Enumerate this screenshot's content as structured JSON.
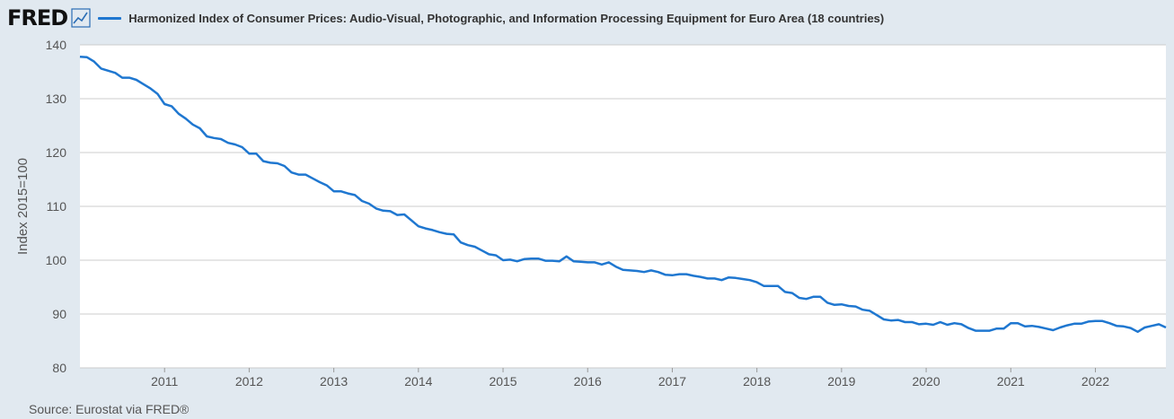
{
  "header": {
    "logo": "FRED",
    "logo_icon": "line-chart-icon",
    "legend": "Harmonized Index of Consumer Prices: Audio-Visual, Photographic, and Information Processing Equipment for Euro Area (18 countries)"
  },
  "colors": {
    "series": "#1f77d0",
    "background": "#e1e9f0",
    "plot": "#ffffff",
    "grid": "#cccccc"
  },
  "source": "Source: Eurostat via FRED®",
  "chart_data": {
    "type": "line",
    "title": "",
    "xlabel": "",
    "ylabel": "Index 2015=100",
    "ylim": [
      80,
      140
    ],
    "xlim": [
      "2010-01",
      "2022-11"
    ],
    "yticks": [
      80,
      90,
      100,
      110,
      120,
      130,
      140
    ],
    "xticks": [
      "2011",
      "2012",
      "2013",
      "2014",
      "2015",
      "2016",
      "2017",
      "2018",
      "2019",
      "2020",
      "2021",
      "2022"
    ],
    "grid": true,
    "series": [
      {
        "name": "Harmonized Index of Consumer Prices: Audio-Visual, Photographic, and Information Processing Equipment for Euro Area (18 countries)",
        "frequency": "monthly",
        "start": "2010-01",
        "values": [
          137.8,
          137.7,
          136.9,
          135.6,
          135.2,
          134.8,
          133.9,
          133.9,
          133.5,
          132.7,
          131.9,
          130.9,
          129.0,
          128.6,
          127.2,
          126.3,
          125.2,
          124.5,
          123.0,
          122.7,
          122.5,
          121.8,
          121.5,
          121.0,
          119.8,
          119.8,
          118.4,
          118.1,
          118.0,
          117.5,
          116.3,
          115.9,
          115.9,
          115.2,
          114.5,
          113.9,
          112.8,
          112.8,
          112.4,
          112.1,
          111.0,
          110.5,
          109.6,
          109.2,
          109.1,
          108.4,
          108.5,
          107.4,
          106.3,
          105.9,
          105.6,
          105.2,
          104.9,
          104.8,
          103.3,
          102.8,
          102.5,
          101.8,
          101.1,
          100.9,
          100.0,
          100.1,
          99.8,
          100.2,
          100.3,
          100.3,
          99.9,
          99.9,
          99.8,
          100.7,
          99.8,
          99.7,
          99.6,
          99.6,
          99.2,
          99.6,
          98.8,
          98.2,
          98.1,
          98.0,
          97.8,
          98.1,
          97.8,
          97.3,
          97.2,
          97.4,
          97.4,
          97.1,
          96.9,
          96.6,
          96.6,
          96.3,
          96.8,
          96.7,
          96.5,
          96.3,
          95.9,
          95.2,
          95.2,
          95.2,
          94.1,
          93.9,
          93.0,
          92.8,
          93.2,
          93.2,
          92.1,
          91.7,
          91.8,
          91.5,
          91.4,
          90.8,
          90.6,
          89.8,
          89.0,
          88.8,
          88.9,
          88.5,
          88.5,
          88.1,
          88.2,
          88.0,
          88.5,
          88.0,
          88.3,
          88.1,
          87.4,
          86.9,
          86.9,
          86.9,
          87.3,
          87.3,
          88.3,
          88.3,
          87.7,
          87.8,
          87.6,
          87.3,
          87.0,
          87.5,
          87.9,
          88.2,
          88.2,
          88.6,
          88.7,
          88.7,
          88.3,
          87.8,
          87.7,
          87.4,
          86.7,
          87.5,
          87.8,
          88.1,
          87.5
        ]
      }
    ]
  }
}
